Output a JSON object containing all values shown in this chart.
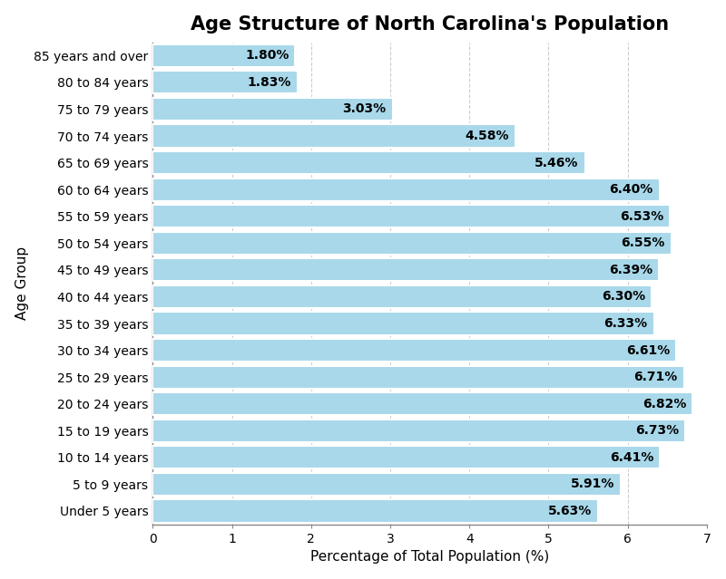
{
  "title": "Age Structure of North Carolina's Population",
  "xlabel": "Percentage of Total Population (%)",
  "ylabel": "Age Group",
  "categories": [
    "85 years and over",
    "80 to 84 years",
    "75 to 79 years",
    "70 to 74 years",
    "65 to 69 years",
    "60 to 64 years",
    "55 to 59 years",
    "50 to 54 years",
    "45 to 49 years",
    "40 to 44 years",
    "35 to 39 years",
    "30 to 34 years",
    "25 to 29 years",
    "20 to 24 years",
    "15 to 19 years",
    "10 to 14 years",
    "5 to 9 years",
    "Under 5 years"
  ],
  "values": [
    1.8,
    1.83,
    3.03,
    4.58,
    5.46,
    6.4,
    6.53,
    6.55,
    6.39,
    6.3,
    6.33,
    6.61,
    6.71,
    6.82,
    6.73,
    6.41,
    5.91,
    5.63
  ],
  "bar_color": "#a8d8ea",
  "bar_edgecolor": "#ffffff",
  "label_color": "#000000",
  "title_fontsize": 15,
  "axis_label_fontsize": 11,
  "tick_label_fontsize": 10,
  "bar_label_fontsize": 10,
  "xlim": [
    0,
    7
  ],
  "xticks": [
    0,
    1,
    2,
    3,
    4,
    5,
    6,
    7
  ],
  "plot_bg_color": "#ffffff",
  "fig_bg_color": "#ffffff",
  "grid_color": "#cccccc",
  "bar_height": 0.85
}
